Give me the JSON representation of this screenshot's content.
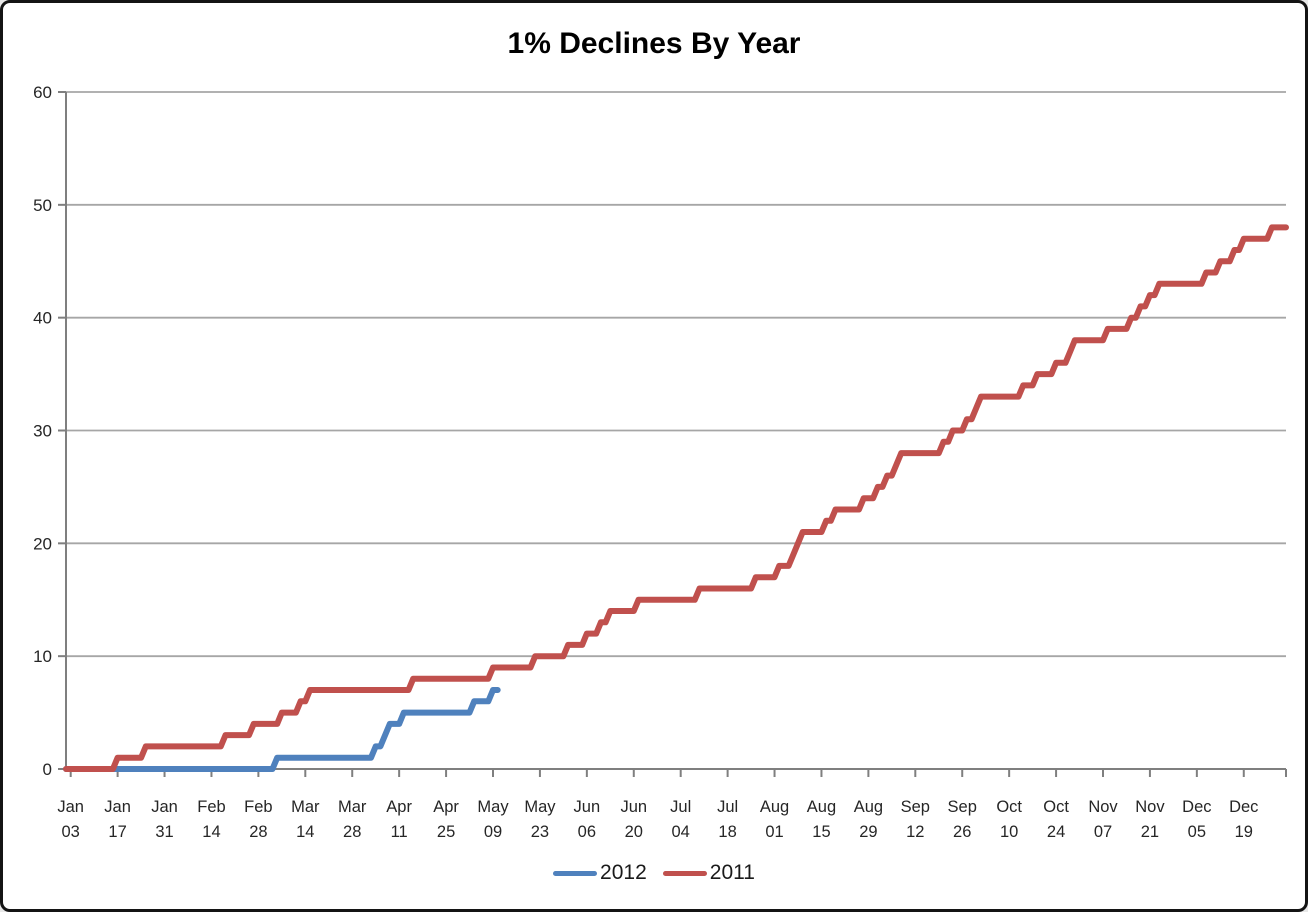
{
  "chart_data": {
    "type": "line",
    "subtype": "cumulative-step",
    "title": "1% Declines By Year",
    "xlabel": "",
    "ylabel": "",
    "grid": true,
    "y_axis": {
      "min": 0,
      "max": 60,
      "step": 10,
      "ticks": [
        0,
        10,
        20,
        30,
        40,
        50,
        60
      ],
      "tick_labels": [
        "0",
        "10",
        "20",
        "30",
        "40",
        "50",
        "60"
      ]
    },
    "x_axis": {
      "unit": "trading-day",
      "axis_min_day": 0,
      "axis_max_day": 260,
      "first_tick_day": 1,
      "days_per_tick": 10,
      "tick_labels": [
        {
          "month": "Jan",
          "day": "03"
        },
        {
          "month": "Jan",
          "day": "17"
        },
        {
          "month": "Jan",
          "day": "31"
        },
        {
          "month": "Feb",
          "day": "14"
        },
        {
          "month": "Feb",
          "day": "28"
        },
        {
          "month": "Mar",
          "day": "14"
        },
        {
          "month": "Mar",
          "day": "28"
        },
        {
          "month": "Apr",
          "day": "11"
        },
        {
          "month": "Apr",
          "day": "25"
        },
        {
          "month": "May",
          "day": "09"
        },
        {
          "month": "May",
          "day": "23"
        },
        {
          "month": "Jun",
          "day": "06"
        },
        {
          "month": "Jun",
          "day": "20"
        },
        {
          "month": "Jul",
          "day": "04"
        },
        {
          "month": "Jul",
          "day": "18"
        },
        {
          "month": "Aug",
          "day": "01"
        },
        {
          "month": "Aug",
          "day": "15"
        },
        {
          "month": "Aug",
          "day": "29"
        },
        {
          "month": "Sep",
          "day": "12"
        },
        {
          "month": "Sep",
          "day": "26"
        },
        {
          "month": "Oct",
          "day": "10"
        },
        {
          "month": "Oct",
          "day": "24"
        },
        {
          "month": "Nov",
          "day": "07"
        },
        {
          "month": "Nov",
          "day": "21"
        },
        {
          "month": "Dec",
          "day": "05"
        },
        {
          "month": "Dec",
          "day": "19"
        }
      ]
    },
    "series": [
      {
        "name": "2012",
        "color": "#4F81BD",
        "start_day": 0,
        "end_day": 92,
        "start_value": 0,
        "end_value": 7,
        "increment_days": [
          45,
          66,
          68,
          69,
          72,
          87,
          91
        ]
      },
      {
        "name": "2011",
        "color": "#C0504D",
        "start_day": 0,
        "end_day": 260,
        "start_value": 0,
        "end_value": 48,
        "increment_days": [
          11,
          17,
          34,
          40,
          46,
          50,
          52,
          74,
          91,
          100,
          107,
          111,
          114,
          116,
          122,
          135,
          147,
          152,
          155,
          156,
          157,
          162,
          164,
          170,
          173,
          175,
          177,
          178,
          187,
          189,
          192,
          194,
          195,
          204,
          207,
          211,
          214,
          215,
          222,
          227,
          229,
          231,
          233,
          243,
          246,
          249,
          251,
          257
        ]
      }
    ],
    "legend": {
      "position": "bottom",
      "entries": [
        "2012",
        "2011"
      ]
    },
    "style": {
      "gridline_color": "#a6a6a6",
      "axis_color": "#7f7f7f",
      "tick_text_color": "#262626",
      "title_color": "#000000",
      "series_stroke_width": 6
    }
  }
}
